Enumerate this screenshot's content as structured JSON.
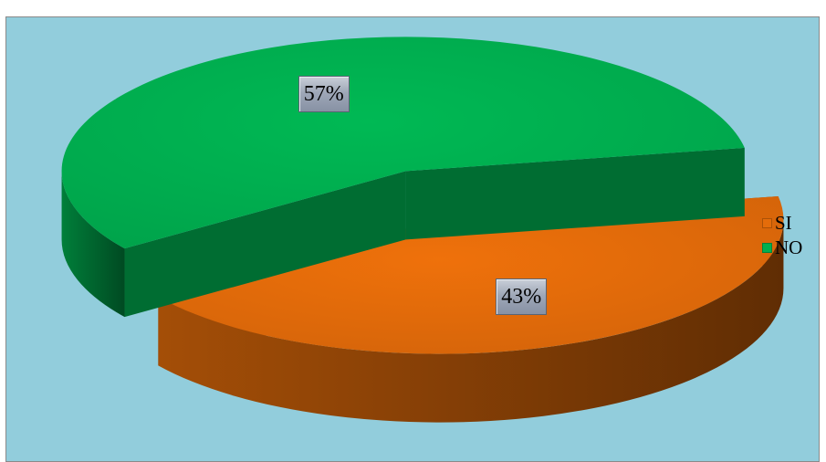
{
  "chart_data": {
    "type": "pie",
    "style": "3d-exploded",
    "title": "",
    "legend_position": "right",
    "slices": [
      {
        "name": "SI",
        "value": 43,
        "label": "43%",
        "color": "#e46c0a"
      },
      {
        "name": "NO",
        "value": 57,
        "label": "57%",
        "color": "#00b050"
      }
    ]
  },
  "colors": {
    "background": "#92cddc",
    "border": "#8a8a8a"
  }
}
